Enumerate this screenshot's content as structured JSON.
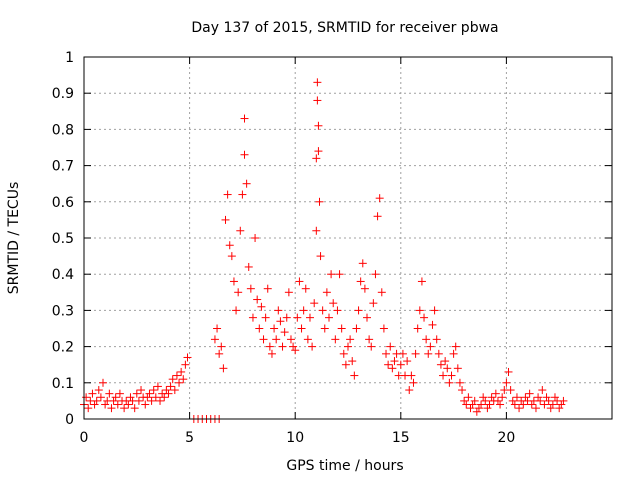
{
  "chart_data": {
    "type": "scatter",
    "title": "Day 137 of 2015, SRMTID for receiver pbwa",
    "xlabel": "GPS time / hours",
    "ylabel": "SRMTID / TECUs",
    "xlim": [
      0,
      25
    ],
    "ylim": [
      0,
      1
    ],
    "x_ticks": [
      0,
      5,
      10,
      15,
      20
    ],
    "x_tick_labels": [
      "0",
      "5",
      "10",
      "15",
      "20"
    ],
    "y_ticks": [
      0,
      0.1,
      0.2,
      0.3,
      0.4,
      0.5,
      0.6,
      0.7,
      0.8,
      0.9,
      1
    ],
    "y_tick_labels": [
      "0",
      "0.1",
      "0.2",
      "0.3",
      "0.4",
      "0.5",
      "0.6",
      "0.7",
      "0.8",
      "0.9",
      "1"
    ],
    "grid": true,
    "marker": "+",
    "series_color": "#ff0000",
    "series": [
      {
        "name": "SRMTID",
        "points": [
          [
            0.0,
            0.04
          ],
          [
            0.1,
            0.06
          ],
          [
            0.2,
            0.03
          ],
          [
            0.3,
            0.05
          ],
          [
            0.4,
            0.07
          ],
          [
            0.5,
            0.04
          ],
          [
            0.6,
            0.05
          ],
          [
            0.7,
            0.08
          ],
          [
            0.8,
            0.06
          ],
          [
            0.9,
            0.1
          ],
          [
            1.0,
            0.04
          ],
          [
            1.1,
            0.05
          ],
          [
            1.2,
            0.07
          ],
          [
            1.3,
            0.03
          ],
          [
            1.4,
            0.05
          ],
          [
            1.5,
            0.06
          ],
          [
            1.6,
            0.04
          ],
          [
            1.7,
            0.07
          ],
          [
            1.8,
            0.05
          ],
          [
            1.9,
            0.03
          ],
          [
            2.0,
            0.05
          ],
          [
            2.1,
            0.04
          ],
          [
            2.2,
            0.06
          ],
          [
            2.3,
            0.05
          ],
          [
            2.4,
            0.03
          ],
          [
            2.5,
            0.07
          ],
          [
            2.6,
            0.05
          ],
          [
            2.7,
            0.08
          ],
          [
            2.8,
            0.06
          ],
          [
            2.9,
            0.04
          ],
          [
            3.0,
            0.06
          ],
          [
            3.1,
            0.07
          ],
          [
            3.2,
            0.05
          ],
          [
            3.3,
            0.08
          ],
          [
            3.4,
            0.06
          ],
          [
            3.5,
            0.09
          ],
          [
            3.6,
            0.05
          ],
          [
            3.7,
            0.07
          ],
          [
            3.8,
            0.06
          ],
          [
            3.9,
            0.08
          ],
          [
            4.0,
            0.07
          ],
          [
            4.1,
            0.09
          ],
          [
            4.2,
            0.11
          ],
          [
            4.3,
            0.08
          ],
          [
            4.4,
            0.12
          ],
          [
            4.5,
            0.1
          ],
          [
            4.6,
            0.13
          ],
          [
            4.7,
            0.11
          ],
          [
            4.8,
            0.15
          ],
          [
            4.9,
            0.17
          ],
          [
            5.2,
            0.0
          ],
          [
            5.4,
            0.0
          ],
          [
            5.6,
            0.0
          ],
          [
            5.8,
            0.0
          ],
          [
            6.0,
            0.0
          ],
          [
            6.2,
            0.0
          ],
          [
            6.4,
            0.0
          ],
          [
            6.2,
            0.22
          ],
          [
            6.3,
            0.25
          ],
          [
            6.4,
            0.18
          ],
          [
            6.5,
            0.2
          ],
          [
            6.6,
            0.14
          ],
          [
            6.7,
            0.55
          ],
          [
            6.8,
            0.62
          ],
          [
            6.9,
            0.48
          ],
          [
            7.0,
            0.45
          ],
          [
            7.1,
            0.38
          ],
          [
            7.2,
            0.3
          ],
          [
            7.3,
            0.35
          ],
          [
            7.4,
            0.52
          ],
          [
            7.5,
            0.62
          ],
          [
            7.6,
            0.73
          ],
          [
            7.6,
            0.83
          ],
          [
            7.7,
            0.65
          ],
          [
            7.8,
            0.42
          ],
          [
            7.9,
            0.36
          ],
          [
            8.0,
            0.28
          ],
          [
            8.1,
            0.5
          ],
          [
            8.2,
            0.33
          ],
          [
            8.3,
            0.25
          ],
          [
            8.4,
            0.31
          ],
          [
            8.5,
            0.22
          ],
          [
            8.6,
            0.28
          ],
          [
            8.7,
            0.36
          ],
          [
            8.8,
            0.2
          ],
          [
            8.9,
            0.18
          ],
          [
            9.0,
            0.25
          ],
          [
            9.1,
            0.22
          ],
          [
            9.2,
            0.3
          ],
          [
            9.3,
            0.27
          ],
          [
            9.4,
            0.2
          ],
          [
            9.5,
            0.24
          ],
          [
            9.6,
            0.28
          ],
          [
            9.7,
            0.35
          ],
          [
            9.8,
            0.22
          ],
          [
            9.9,
            0.2
          ],
          [
            10.0,
            0.19
          ],
          [
            10.1,
            0.28
          ],
          [
            10.2,
            0.38
          ],
          [
            10.3,
            0.25
          ],
          [
            10.4,
            0.3
          ],
          [
            10.5,
            0.36
          ],
          [
            10.6,
            0.22
          ],
          [
            10.7,
            0.28
          ],
          [
            10.8,
            0.2
          ],
          [
            10.9,
            0.32
          ],
          [
            11.0,
            0.52
          ],
          [
            11.0,
            0.72
          ],
          [
            11.05,
            0.93
          ],
          [
            11.05,
            0.88
          ],
          [
            11.1,
            0.81
          ],
          [
            11.1,
            0.74
          ],
          [
            11.15,
            0.6
          ],
          [
            11.2,
            0.45
          ],
          [
            11.3,
            0.3
          ],
          [
            11.4,
            0.25
          ],
          [
            11.5,
            0.35
          ],
          [
            11.6,
            0.28
          ],
          [
            11.7,
            0.4
          ],
          [
            11.8,
            0.32
          ],
          [
            11.9,
            0.22
          ],
          [
            12.0,
            0.3
          ],
          [
            12.1,
            0.4
          ],
          [
            12.2,
            0.25
          ],
          [
            12.3,
            0.18
          ],
          [
            12.4,
            0.15
          ],
          [
            12.5,
            0.2
          ],
          [
            12.6,
            0.22
          ],
          [
            12.7,
            0.16
          ],
          [
            12.8,
            0.12
          ],
          [
            12.9,
            0.25
          ],
          [
            13.0,
            0.3
          ],
          [
            13.1,
            0.38
          ],
          [
            13.2,
            0.43
          ],
          [
            13.3,
            0.36
          ],
          [
            13.4,
            0.28
          ],
          [
            13.5,
            0.22
          ],
          [
            13.6,
            0.2
          ],
          [
            13.7,
            0.32
          ],
          [
            13.8,
            0.4
          ],
          [
            13.9,
            0.56
          ],
          [
            14.0,
            0.61
          ],
          [
            14.1,
            0.35
          ],
          [
            14.2,
            0.25
          ],
          [
            14.3,
            0.18
          ],
          [
            14.4,
            0.15
          ],
          [
            14.5,
            0.2
          ],
          [
            14.6,
            0.14
          ],
          [
            14.7,
            0.16
          ],
          [
            14.8,
            0.18
          ],
          [
            14.9,
            0.12
          ],
          [
            15.0,
            0.15
          ],
          [
            15.1,
            0.18
          ],
          [
            15.2,
            0.12
          ],
          [
            15.3,
            0.16
          ],
          [
            15.4,
            0.08
          ],
          [
            15.5,
            0.12
          ],
          [
            15.6,
            0.1
          ],
          [
            15.7,
            0.18
          ],
          [
            15.8,
            0.25
          ],
          [
            15.9,
            0.3
          ],
          [
            16.0,
            0.38
          ],
          [
            16.1,
            0.28
          ],
          [
            16.2,
            0.22
          ],
          [
            16.3,
            0.18
          ],
          [
            16.4,
            0.2
          ],
          [
            16.5,
            0.26
          ],
          [
            16.6,
            0.3
          ],
          [
            16.7,
            0.22
          ],
          [
            16.8,
            0.18
          ],
          [
            16.9,
            0.15
          ],
          [
            17.0,
            0.12
          ],
          [
            17.1,
            0.16
          ],
          [
            17.2,
            0.14
          ],
          [
            17.3,
            0.1
          ],
          [
            17.4,
            0.12
          ],
          [
            17.5,
            0.18
          ],
          [
            17.6,
            0.2
          ],
          [
            17.7,
            0.14
          ],
          [
            17.8,
            0.1
          ],
          [
            17.9,
            0.08
          ],
          [
            18.0,
            0.05
          ],
          [
            18.1,
            0.04
          ],
          [
            18.2,
            0.06
          ],
          [
            18.3,
            0.03
          ],
          [
            18.4,
            0.04
          ],
          [
            18.5,
            0.05
          ],
          [
            18.6,
            0.02
          ],
          [
            18.7,
            0.03
          ],
          [
            18.8,
            0.04
          ],
          [
            18.9,
            0.06
          ],
          [
            19.0,
            0.05
          ],
          [
            19.1,
            0.03
          ],
          [
            19.2,
            0.04
          ],
          [
            19.3,
            0.06
          ],
          [
            19.4,
            0.05
          ],
          [
            19.5,
            0.07
          ],
          [
            19.6,
            0.05
          ],
          [
            19.7,
            0.04
          ],
          [
            19.8,
            0.06
          ],
          [
            19.9,
            0.08
          ],
          [
            20.0,
            0.1
          ],
          [
            20.1,
            0.13
          ],
          [
            20.2,
            0.08
          ],
          [
            20.3,
            0.05
          ],
          [
            20.4,
            0.04
          ],
          [
            20.5,
            0.06
          ],
          [
            20.6,
            0.03
          ],
          [
            20.7,
            0.05
          ],
          [
            20.8,
            0.04
          ],
          [
            20.9,
            0.06
          ],
          [
            21.0,
            0.05
          ],
          [
            21.1,
            0.07
          ],
          [
            21.2,
            0.04
          ],
          [
            21.3,
            0.05
          ],
          [
            21.4,
            0.03
          ],
          [
            21.5,
            0.06
          ],
          [
            21.6,
            0.05
          ],
          [
            21.7,
            0.08
          ],
          [
            21.8,
            0.04
          ],
          [
            21.9,
            0.06
          ],
          [
            22.0,
            0.05
          ],
          [
            22.1,
            0.03
          ],
          [
            22.2,
            0.04
          ],
          [
            22.3,
            0.06
          ],
          [
            22.4,
            0.05
          ],
          [
            22.5,
            0.03
          ],
          [
            22.6,
            0.04
          ],
          [
            22.7,
            0.05
          ]
        ]
      }
    ]
  }
}
